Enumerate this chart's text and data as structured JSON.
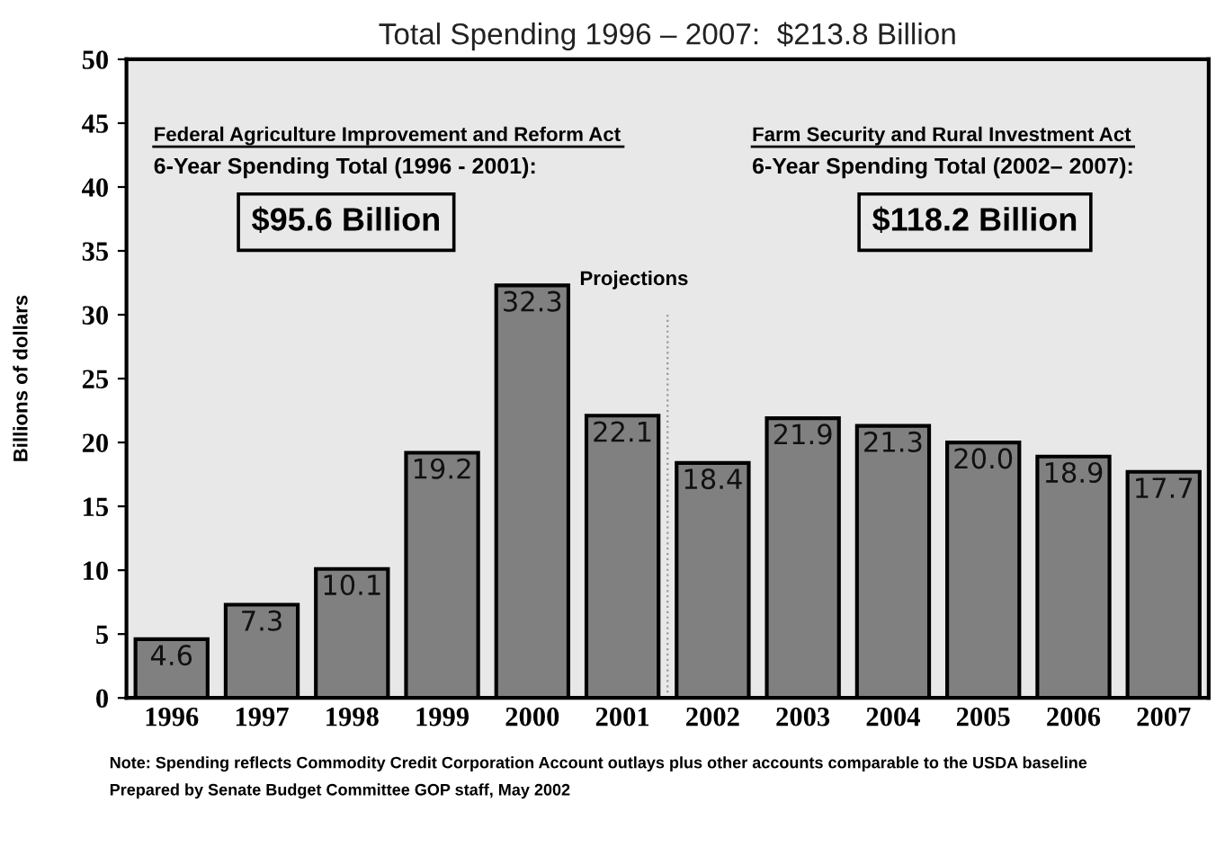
{
  "chart_data": {
    "type": "bar",
    "title": "Total Spending 1996 – 2007:  $213.8 Billion",
    "ylabel": "Billions of dollars",
    "categories": [
      "1996",
      "1997",
      "1998",
      "1999",
      "2000",
      "2001",
      "2002",
      "2003",
      "2004",
      "2005",
      "2006",
      "2007"
    ],
    "values": [
      4.6,
      7.3,
      10.1,
      19.2,
      32.3,
      22.1,
      18.4,
      21.9,
      21.3,
      20.0,
      18.9,
      17.7
    ],
    "value_labels": [
      "4.6",
      "7.3",
      "10.1",
      "19.2",
      "32.3",
      "22.1",
      "18.4",
      "21.9",
      "21.3",
      "20.0",
      "18.9",
      "17.7"
    ],
    "color": "#808080",
    "ylim": [
      0,
      50
    ],
    "yticks": [
      0,
      5,
      10,
      15,
      20,
      25,
      30,
      35,
      40,
      45,
      50
    ],
    "grid": false,
    "annotations": [
      "Federal Agriculture Improvement and Reform Act",
      "6-Year Spending Total (1996 - 2001):",
      "$95.6 Billion",
      "Farm Security and Rural Investment Act",
      "6-Year Spending Total (2002– 2007):",
      "$118.2 Billion",
      "Note: Spending reflects Commodity Credit Corporation Account outlays plus other accounts comparable to the USDA baseline",
      "Prepared by Senate Budget Committee GOP staff, May 2002",
      "Projections"
    ]
  }
}
